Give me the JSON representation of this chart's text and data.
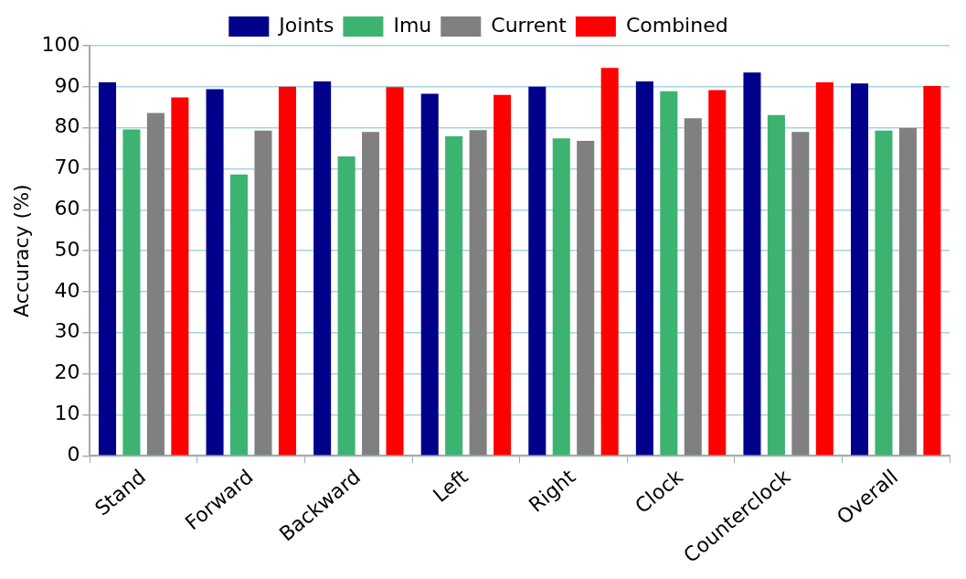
{
  "chart_data": {
    "type": "bar",
    "ylabel": "Accuracy (%)",
    "categories": [
      "Stand",
      "Forward",
      "Backward",
      "Left",
      "Right",
      "Clock",
      "Counterclock",
      "Overall"
    ],
    "series": [
      {
        "name": "Joints",
        "color": "#00008b",
        "values": [
          91.1,
          89.4,
          91.3,
          88.3,
          90.0,
          91.3,
          93.5,
          90.8
        ]
      },
      {
        "name": "Imu",
        "color": "#3cb371",
        "values": [
          79.6,
          68.6,
          73.0,
          77.9,
          77.4,
          88.9,
          83.1,
          79.3
        ]
      },
      {
        "name": "Current",
        "color": "#808080",
        "values": [
          83.6,
          79.3,
          79.0,
          79.4,
          76.8,
          82.3,
          79.0,
          79.9
        ]
      },
      {
        "name": "Combined",
        "color": "#ff0000",
        "values": [
          87.4,
          90.0,
          89.9,
          88.0,
          94.6,
          89.2,
          91.1,
          90.2
        ]
      }
    ],
    "ylim": [
      0,
      100
    ],
    "yticks": [
      0,
      10,
      20,
      30,
      40,
      50,
      60,
      70,
      80,
      90,
      100
    ],
    "grid": "y",
    "legend": "top"
  }
}
